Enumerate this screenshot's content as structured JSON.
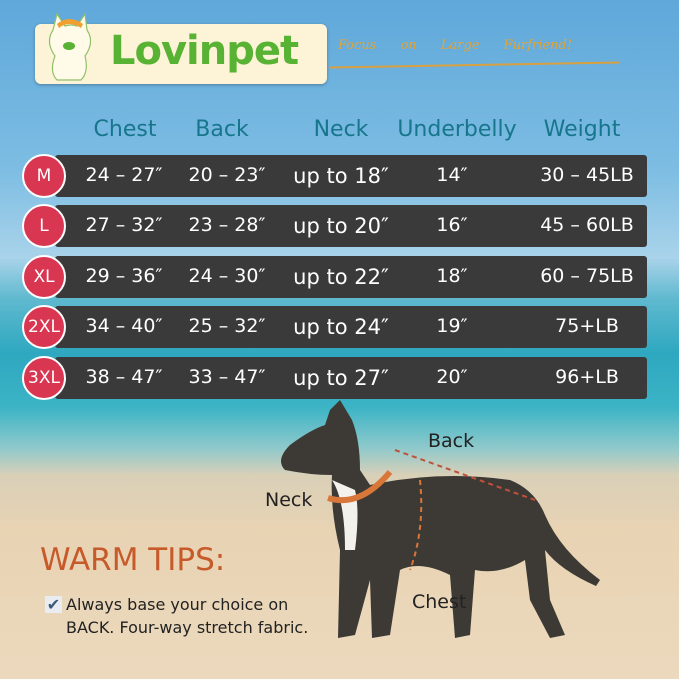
{
  "brand": {
    "name": "Lovinpet",
    "slogan": "Focus on Large Furfriend!"
  },
  "headers": [
    "Chest",
    "Back",
    "Neck",
    "Underbelly",
    "Weight"
  ],
  "rows": [
    {
      "size": "M",
      "chest": "24 – 27″",
      "back": "20 – 23″",
      "neck": "up to 18″",
      "underbelly": "14″",
      "weight": "30 – 45LB"
    },
    {
      "size": "L",
      "chest": "27 – 32″",
      "back": "23 – 28″",
      "neck": "up to 20″",
      "underbelly": "16″",
      "weight": "45 – 60LB"
    },
    {
      "size": "XL",
      "chest": "29 – 36″",
      "back": "24 – 30″",
      "neck": "up to 22″",
      "underbelly": "18″",
      "weight": "60 – 75LB"
    },
    {
      "size": "2XL",
      "chest": "34 – 40″",
      "back": "25 – 32″",
      "neck": "up to 24″",
      "underbelly": "19″",
      "weight": "75+LB"
    },
    {
      "size": "3XL",
      "chest": "38 – 47″",
      "back": "33 – 47″",
      "neck": "up to 27″",
      "underbelly": "20″",
      "weight": "96+LB"
    }
  ],
  "diagram": {
    "back": "Back",
    "neck": "Neck",
    "chest": "Chest"
  },
  "tips": {
    "title": "WARM TIPS:",
    "check_icon": "checkbox-checked-icon",
    "line1": "Always base your choice on",
    "line2": "BACK. Four-way stretch fabric."
  },
  "colors": {
    "row": "#3b3a3a",
    "badge": "#d93651",
    "header": "#17768c",
    "tips": "#c75a2a",
    "brand": "#58b233"
  }
}
